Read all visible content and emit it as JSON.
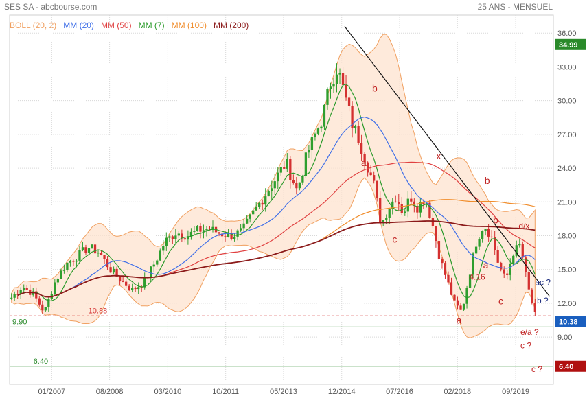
{
  "header": {
    "title": "SES SA - abcbourse.com",
    "period": "25 ANS - MENSUEL"
  },
  "colors": {
    "boll": "#f0a060",
    "mm20": "#3f6fe8",
    "mm50": "#e04040",
    "mm7": "#2a9a2a",
    "mm100": "#f08c2a",
    "mm200": "#8b1a1a",
    "up": "#2e9e2e",
    "down": "#d43030",
    "annotation": "#c02020",
    "annotation_blue": "#203080",
    "support_green": "#2a8a2a",
    "price_box": "#2a8a2a",
    "price_box_red": "#b01010"
  },
  "chart_data": {
    "type": "line",
    "title": "SES SA - abcbourse.com",
    "subtitle": "25 ANS - MENSUEL",
    "ylim": [
      7.8,
      37
    ],
    "y_ticks": [
      "9.00",
      "12.00",
      "15.00",
      "18.00",
      "21.00",
      "24.00",
      "27.00",
      "30.00",
      "33.00",
      "36.00"
    ],
    "x_ticks": [
      {
        "label": "01/2007",
        "t": 2007.0
      },
      {
        "label": "08/2008",
        "t": 2008.58
      },
      {
        "label": "03/2010",
        "t": 2010.17
      },
      {
        "label": "10/2011",
        "t": 2011.75
      },
      {
        "label": "05/2013",
        "t": 2013.33
      },
      {
        "label": "12/2014",
        "t": 2014.92
      },
      {
        "label": "07/2016",
        "t": 2016.5
      },
      {
        "label": "02/2018",
        "t": 2018.08
      },
      {
        "label": "09/2019",
        "t": 2019.67
      }
    ],
    "legend": [
      "BOLL (20, 2)",
      "MM (20)",
      "MM (50)",
      "MM (7)",
      "MM (100)",
      "MM (200)"
    ],
    "last_price": "34.99",
    "current_price": "10.38",
    "target_price": "6.40",
    "price_series": {
      "name": "SES SA",
      "t": [
        2005.9,
        2006.2,
        2006.5,
        2006.8,
        2007.1,
        2007.4,
        2007.7,
        2008.0,
        2008.3,
        2008.6,
        2008.9,
        2009.2,
        2009.5,
        2009.8,
        2010.1,
        2010.4,
        2010.7,
        2011.0,
        2011.3,
        2011.6,
        2011.9,
        2012.2,
        2012.5,
        2012.8,
        2013.1,
        2013.4,
        2013.7,
        2014.0,
        2014.2,
        2014.4,
        2014.6,
        2014.8,
        2015.0,
        2015.2,
        2015.4,
        2015.6,
        2015.8,
        2016.0,
        2016.2,
        2016.4,
        2016.6,
        2016.8,
        2017.0,
        2017.2,
        2017.4,
        2017.6,
        2017.8,
        2018.0,
        2018.2,
        2018.4,
        2018.6,
        2018.8,
        2019.0,
        2019.2,
        2019.4,
        2019.6,
        2019.8,
        2020.0,
        2020.2
      ],
      "values": [
        12.5,
        13.5,
        12.8,
        11.2,
        14.0,
        15.5,
        16.2,
        17.0,
        16.5,
        15.0,
        14.0,
        13.2,
        13.8,
        15.5,
        17.5,
        18.3,
        18.0,
        18.5,
        18.6,
        18.2,
        18.0,
        18.4,
        20.0,
        21.5,
        23.0,
        24.5,
        22.0,
        25.5,
        27.0,
        28.5,
        31.5,
        33.0,
        30.5,
        28.0,
        26.5,
        24.5,
        22.5,
        19.0,
        20.5,
        21.5,
        20.0,
        21.5,
        20.5,
        21.5,
        19.0,
        16.0,
        14.0,
        12.0,
        11.2,
        14.5,
        17.5,
        19.0,
        18.0,
        15.5,
        14.0,
        16.5,
        17.2,
        13.5,
        11.0
      ]
    },
    "annotations": [
      {
        "text": "b",
        "t": 2015.75,
        "y": 30.8,
        "color": "annotation"
      },
      {
        "text": "a",
        "t": 2015.45,
        "y": 24.2,
        "color": "annotation"
      },
      {
        "text": "x",
        "t": 2017.5,
        "y": 24.8,
        "color": "annotation"
      },
      {
        "text": "b",
        "t": 2018.82,
        "y": 22.6,
        "color": "annotation"
      },
      {
        "text": "c",
        "t": 2016.3,
        "y": 17.4,
        "color": "annotation"
      },
      {
        "text": "b",
        "t": 2019.05,
        "y": 19.1,
        "color": "annotation"
      },
      {
        "text": "d/x",
        "t": 2019.75,
        "y": 18.6,
        "color": "annotation"
      },
      {
        "text": "a",
        "t": 2018.78,
        "y": 15.1,
        "color": "annotation"
      },
      {
        "text": "4.16",
        "t": 2018.4,
        "y": 14.1,
        "color": "annotation"
      },
      {
        "text": "c",
        "t": 2019.2,
        "y": 11.9,
        "color": "annotation"
      },
      {
        "text": "a",
        "t": 2018.05,
        "y": 10.2,
        "color": "annotation"
      },
      {
        "text": "ac ?",
        "t": 2020.2,
        "y": 13.6,
        "color": "annotation_blue"
      },
      {
        "text": "b ?",
        "t": 2020.25,
        "y": 12.0,
        "color": "annotation_blue"
      },
      {
        "text": "e/a ?",
        "t": 2019.8,
        "y": 9.2,
        "color": "annotation"
      },
      {
        "text": "c ?",
        "t": 2019.8,
        "y": 8.0,
        "color": "annotation"
      },
      {
        "text": "c ?",
        "t": 2020.1,
        "y": 5.9,
        "color": "annotation"
      }
    ],
    "levels": [
      {
        "label": "9.90",
        "y": 9.9,
        "color": "support_green",
        "style": "solid"
      },
      {
        "label": "10.88",
        "y": 10.88,
        "color": "down",
        "style": "dashed"
      },
      {
        "label": "6.40",
        "y": 6.4,
        "color": "support_green",
        "style": "solid"
      }
    ]
  }
}
